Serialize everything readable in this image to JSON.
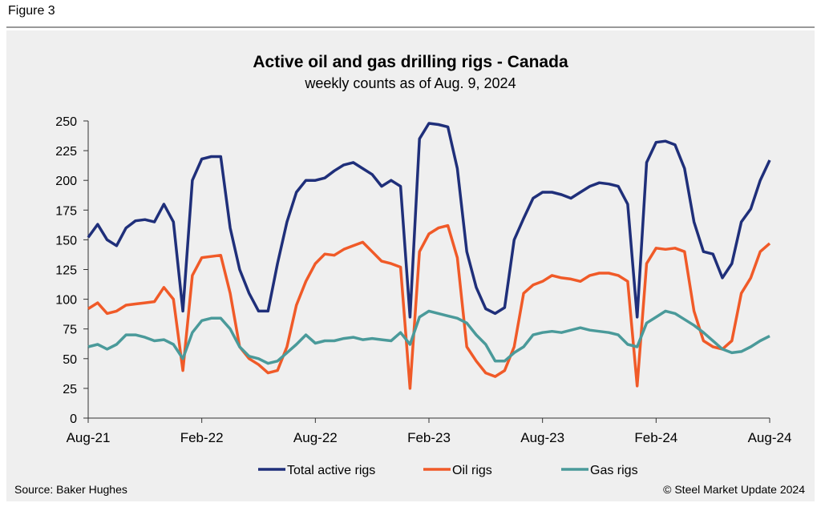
{
  "figure_label": "Figure 3",
  "source": "Source: Baker Hughes",
  "copyright": "© Steel Market Update 2024",
  "chart_data": {
    "type": "line",
    "title": "Active oil and gas drilling rigs - Canada",
    "subtitle": "weekly counts as of Aug. 9, 2024",
    "x": [
      0,
      0.5,
      1,
      1.5,
      2,
      2.5,
      3,
      3.5,
      4,
      4.5,
      5,
      5.5,
      6,
      6.5,
      7,
      7.5,
      8,
      8.5,
      9,
      9.5,
      10,
      10.5,
      11,
      11.5,
      12,
      12.5,
      13,
      13.5,
      14,
      14.5,
      15,
      15.5,
      16,
      16.5,
      17,
      17.5,
      18,
      18.5,
      19,
      19.5,
      20,
      20.5,
      21,
      21.5,
      22,
      22.5,
      23,
      23.5,
      24,
      24.5,
      25,
      25.5,
      26,
      26.5,
      27,
      27.5,
      28,
      28.5,
      29,
      29.5,
      30,
      30.5,
      31,
      31.5,
      32,
      32.5,
      33,
      33.5,
      34,
      34.5,
      35,
      35.5,
      36
    ],
    "xlim": [
      0,
      36
    ],
    "xticks": [
      {
        "value": 0,
        "label": "Aug-21"
      },
      {
        "value": 6,
        "label": "Feb-22"
      },
      {
        "value": 12,
        "label": "Aug-22"
      },
      {
        "value": 18,
        "label": "Feb-23"
      },
      {
        "value": 24,
        "label": "Aug-23"
      },
      {
        "value": 30,
        "label": "Feb-24"
      },
      {
        "value": 36,
        "label": "Aug-24"
      }
    ],
    "ylim": [
      0,
      250
    ],
    "yticks": [
      0,
      25,
      50,
      75,
      100,
      125,
      150,
      175,
      200,
      225,
      250
    ],
    "legend": "bottom",
    "series": [
      {
        "name": "Total active rigs",
        "color": "#1f2f7a",
        "values": [
          152,
          163,
          150,
          145,
          160,
          166,
          167,
          165,
          180,
          165,
          90,
          200,
          218,
          220,
          220,
          160,
          125,
          105,
          90,
          90,
          130,
          165,
          190,
          200,
          200,
          202,
          208,
          213,
          215,
          210,
          205,
          195,
          200,
          195,
          85,
          235,
          248,
          247,
          245,
          210,
          140,
          110,
          92,
          88,
          93,
          150,
          168,
          185,
          190,
          190,
          188,
          185,
          190,
          195,
          198,
          197,
          195,
          180,
          85,
          215,
          232,
          233,
          230,
          210,
          165,
          140,
          138,
          118,
          130,
          165,
          176,
          200,
          217
        ]
      },
      {
        "name": "Oil rigs",
        "color": "#f05a28",
        "values": [
          92,
          97,
          88,
          90,
          95,
          96,
          97,
          98,
          110,
          100,
          40,
          120,
          135,
          136,
          137,
          105,
          60,
          50,
          45,
          38,
          40,
          60,
          95,
          115,
          130,
          138,
          137,
          142,
          145,
          148,
          140,
          132,
          130,
          127,
          25,
          140,
          155,
          160,
          162,
          135,
          60,
          48,
          38,
          35,
          40,
          60,
          105,
          112,
          115,
          120,
          118,
          117,
          115,
          120,
          122,
          122,
          120,
          115,
          27,
          130,
          143,
          142,
          143,
          140,
          90,
          65,
          60,
          58,
          65,
          105,
          118,
          140,
          147
        ]
      },
      {
        "name": "Gas rigs",
        "color": "#4a9a9a",
        "values": [
          60,
          62,
          58,
          62,
          70,
          70,
          68,
          65,
          66,
          62,
          50,
          72,
          82,
          84,
          84,
          75,
          60,
          52,
          50,
          46,
          48,
          55,
          62,
          70,
          63,
          65,
          65,
          67,
          68,
          66,
          67,
          66,
          65,
          72,
          62,
          85,
          90,
          88,
          86,
          84,
          80,
          70,
          62,
          48,
          48,
          55,
          60,
          70,
          72,
          73,
          72,
          74,
          76,
          74,
          73,
          72,
          70,
          62,
          60,
          80,
          85,
          90,
          88,
          83,
          78,
          72,
          65,
          58,
          55,
          56,
          60,
          65,
          69
        ]
      }
    ]
  }
}
